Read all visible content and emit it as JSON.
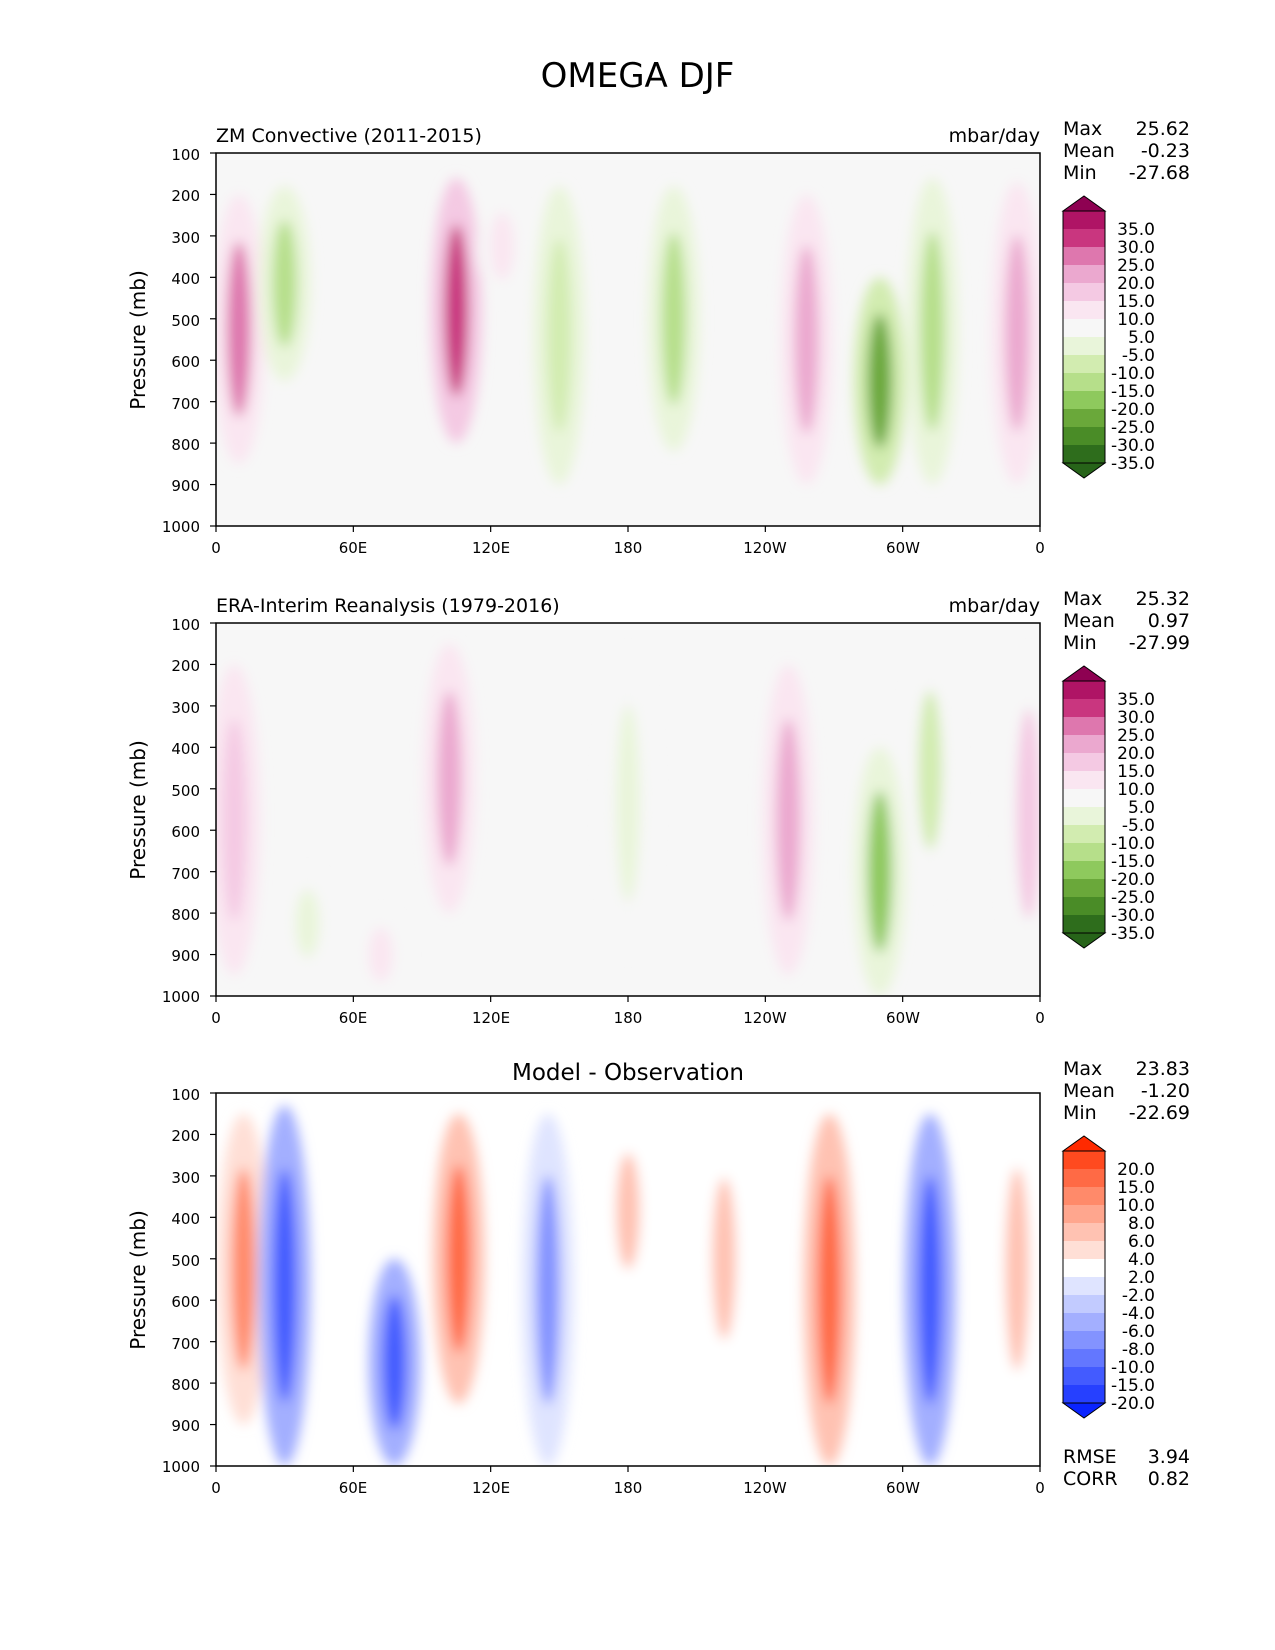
{
  "title": "OMEGA DJF",
  "chart_data": [
    {
      "type": "heatmap",
      "title": "ZM Convective (2011-2015)",
      "units": "mbar/day",
      "ylabel": "Pressure (mb)",
      "x_ticks": [
        "0",
        "60E",
        "120E",
        "180",
        "120W",
        "60W",
        "0"
      ],
      "y_ticks": [
        "100",
        "200",
        "300",
        "400",
        "500",
        "600",
        "700",
        "800",
        "900",
        "1000"
      ],
      "xlim": [
        0,
        360
      ],
      "ylim": [
        1000,
        100
      ],
      "stats": {
        "Max": "25.62",
        "Mean": "-0.23",
        "Min": "-27.68"
      },
      "colorbar": {
        "labels": [
          "35.0",
          "30.0",
          "25.0",
          "20.0",
          "15.0",
          "10.0",
          "5.0",
          "-5.0",
          "-10.0",
          "-15.0",
          "-20.0",
          "-25.0",
          "-30.0",
          "-35.0"
        ],
        "colors": [
          "#8e0152",
          "#af1465",
          "#c9367f",
          "#de77ae",
          "#eba8cf",
          "#f4c9e3",
          "#fae6f1",
          "#f7f7f7",
          "#e9f5da",
          "#d2ecb0",
          "#b6df8a",
          "#8ec95d",
          "#6aa83a",
          "#4a8c27",
          "#2e6d1c",
          "#276419"
        ]
      },
      "features": [
        {
          "lon": 10,
          "p_top": 200,
          "p_bot": 850,
          "value": 20
        },
        {
          "lon": 30,
          "p_top": 180,
          "p_bot": 650,
          "value": -15
        },
        {
          "lon": 105,
          "p_top": 160,
          "p_bot": 800,
          "value": 25
        },
        {
          "lon": 125,
          "p_top": 200,
          "p_bot": 450,
          "value": 5
        },
        {
          "lon": 150,
          "p_top": 180,
          "p_bot": 900,
          "value": -12
        },
        {
          "lon": 200,
          "p_top": 180,
          "p_bot": 820,
          "value": -15
        },
        {
          "lon": 258,
          "p_top": 200,
          "p_bot": 900,
          "value": 18
        },
        {
          "lon": 290,
          "p_top": 400,
          "p_bot": 900,
          "value": -25
        },
        {
          "lon": 313,
          "p_top": 160,
          "p_bot": 900,
          "value": -18
        },
        {
          "lon": 350,
          "p_top": 170,
          "p_bot": 900,
          "value": 15
        }
      ]
    },
    {
      "type": "heatmap",
      "title": "ERA-Interim Reanalysis (1979-2016)",
      "units": "mbar/day",
      "ylabel": "Pressure (mb)",
      "x_ticks": [
        "0",
        "60E",
        "120E",
        "180",
        "120W",
        "60W",
        "0"
      ],
      "y_ticks": [
        "100",
        "200",
        "300",
        "400",
        "500",
        "600",
        "700",
        "800",
        "900",
        "1000"
      ],
      "xlim": [
        0,
        360
      ],
      "ylim": [
        1000,
        100
      ],
      "stats": {
        "Max": "25.32",
        "Mean": "0.97",
        "Min": "-27.99"
      },
      "colorbar": {
        "labels": [
          "35.0",
          "30.0",
          "25.0",
          "20.0",
          "15.0",
          "10.0",
          "5.0",
          "-5.0",
          "-10.0",
          "-15.0",
          "-20.0",
          "-25.0",
          "-30.0",
          "-35.0"
        ],
        "colors": [
          "#8e0152",
          "#af1465",
          "#c9367f",
          "#de77ae",
          "#eba8cf",
          "#f4c9e3",
          "#fae6f1",
          "#f7f7f7",
          "#e9f5da",
          "#d2ecb0",
          "#b6df8a",
          "#8ec95d",
          "#6aa83a",
          "#4a8c27",
          "#2e6d1c",
          "#276419"
        ]
      },
      "features": [
        {
          "lon": 8,
          "p_top": 200,
          "p_bot": 950,
          "value": 12
        },
        {
          "lon": 40,
          "p_top": 700,
          "p_bot": 950,
          "value": -8
        },
        {
          "lon": 72,
          "p_top": 800,
          "p_bot": 1000,
          "value": 8
        },
        {
          "lon": 102,
          "p_top": 150,
          "p_bot": 800,
          "value": 18
        },
        {
          "lon": 180,
          "p_top": 170,
          "p_bot": 900,
          "value": -8
        },
        {
          "lon": 250,
          "p_top": 200,
          "p_bot": 950,
          "value": 18
        },
        {
          "lon": 290,
          "p_top": 400,
          "p_bot": 1000,
          "value": -22
        },
        {
          "lon": 312,
          "p_top": 160,
          "p_bot": 750,
          "value": -10
        },
        {
          "lon": 355,
          "p_top": 170,
          "p_bot": 950,
          "value": 10
        }
      ]
    },
    {
      "type": "heatmap",
      "title": "Model - Observation",
      "units": "",
      "ylabel": "Pressure (mb)",
      "x_ticks": [
        "0",
        "60E",
        "120E",
        "180",
        "120W",
        "60W",
        "0"
      ],
      "y_ticks": [
        "100",
        "200",
        "300",
        "400",
        "500",
        "600",
        "700",
        "800",
        "900",
        "1000"
      ],
      "xlim": [
        0,
        360
      ],
      "ylim": [
        1000,
        100
      ],
      "stats": {
        "Max": "23.83",
        "Mean": "-1.20",
        "Min": "-22.69"
      },
      "metrics": {
        "RMSE": "3.94",
        "CORR": "0.82"
      },
      "colorbar": {
        "labels": [
          "20.0",
          "15.0",
          "10.0",
          "8.0",
          "6.0",
          "4.0",
          "2.0",
          "-2.0",
          "-4.0",
          "-6.0",
          "-8.0",
          "-10.0",
          "-15.0",
          "-20.0"
        ],
        "colors": [
          "#ff2a00",
          "#ff4a1f",
          "#ff6a45",
          "#ff8a6a",
          "#ffa68e",
          "#ffc2b2",
          "#ffdfd6",
          "#ffffff",
          "#dfe4ff",
          "#c2cbff",
          "#a3afff",
          "#8393ff",
          "#6377ff",
          "#435bff",
          "#2640ff",
          "#0a24ff"
        ]
      },
      "features": [
        {
          "lon": 12,
          "p_top": 150,
          "p_bot": 900,
          "value": 8
        },
        {
          "lon": 30,
          "p_top": 130,
          "p_bot": 1000,
          "value": -15
        },
        {
          "lon": 78,
          "p_top": 500,
          "p_bot": 1000,
          "value": -15
        },
        {
          "lon": 106,
          "p_top": 150,
          "p_bot": 850,
          "value": 12
        },
        {
          "lon": 145,
          "p_top": 150,
          "p_bot": 1000,
          "value": -8
        },
        {
          "lon": 180,
          "p_top": 170,
          "p_bot": 600,
          "value": 4
        },
        {
          "lon": 222,
          "p_top": 200,
          "p_bot": 800,
          "value": 4
        },
        {
          "lon": 268,
          "p_top": 150,
          "p_bot": 1000,
          "value": 12
        },
        {
          "lon": 312,
          "p_top": 150,
          "p_bot": 1000,
          "value": -15
        },
        {
          "lon": 350,
          "p_top": 150,
          "p_bot": 900,
          "value": 4
        }
      ]
    }
  ]
}
